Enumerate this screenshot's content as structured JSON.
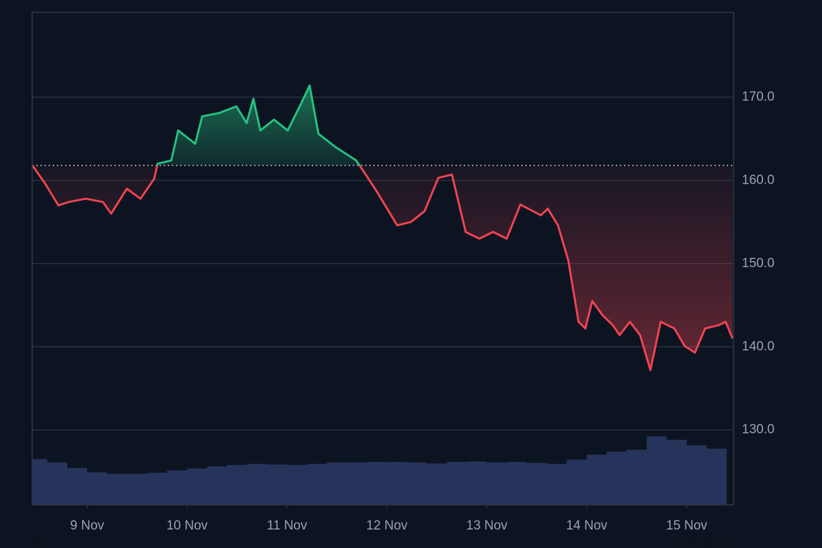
{
  "chart_data": {
    "type": "baseline-area",
    "price": {
      "x": [
        8.452,
        8.575,
        8.712,
        8.815,
        8.986,
        9.158,
        9.24,
        9.397,
        9.534,
        9.671,
        9.705,
        9.842,
        9.911,
        10.082,
        10.151,
        10.322,
        10.493,
        10.596,
        10.664,
        10.733,
        10.87,
        11.007,
        11.144,
        11.226,
        11.315,
        11.486,
        11.692,
        11.76,
        11.897,
        12.103,
        12.24,
        12.377,
        12.514,
        12.651,
        12.788,
        12.925,
        13.062,
        13.199,
        13.336,
        13.541,
        13.61,
        13.712,
        13.815,
        13.918,
        13.986,
        14.055,
        14.158,
        14.26,
        14.329,
        14.432,
        14.534,
        14.637,
        14.74,
        14.877,
        14.979,
        15.082,
        15.185,
        15.322,
        15.39,
        15.459
      ],
      "values": [
        161.8,
        159.7,
        157,
        157.4,
        157.8,
        157.4,
        156,
        159,
        157.8,
        160.2,
        162,
        162.4,
        166,
        164.4,
        167.7,
        168.1,
        168.9,
        166.9,
        169.8,
        166,
        167.3,
        166,
        169.3,
        171.4,
        165.6,
        164,
        162.4,
        161.2,
        158.7,
        154.6,
        155,
        156.3,
        160.3,
        160.7,
        153.8,
        153,
        153.8,
        153,
        157.1,
        155.8,
        156.6,
        154.6,
        150.4,
        143,
        142.2,
        145.5,
        143.8,
        142.6,
        141.4,
        143,
        141.4,
        137.2,
        143,
        142.2,
        140.1,
        139.3,
        142.2,
        142.6,
        143,
        141
      ],
      "up_color": "#26c281",
      "down_color": "#ef4452"
    },
    "baseline": 161.8,
    "volume": {
      "x": [
        8.5,
        8.7,
        8.9,
        9.1,
        9.3,
        9.5,
        9.7,
        9.9,
        10.1,
        10.3,
        10.5,
        10.7,
        10.9,
        11.1,
        11.3,
        11.5,
        11.7,
        11.9,
        12.1,
        12.3,
        12.5,
        12.7,
        12.9,
        13.1,
        13.3,
        13.5,
        13.7,
        13.9,
        14.1,
        14.3,
        14.5,
        14.7,
        14.9,
        15.1,
        15.3
      ],
      "values": [
        9.3,
        8.6,
        7.5,
        6.6,
        6.3,
        6.3,
        6.5,
        7.0,
        7.4,
        7.8,
        8.1,
        8.3,
        8.2,
        8.1,
        8.3,
        8.6,
        8.6,
        8.7,
        8.7,
        8.6,
        8.4,
        8.7,
        8.8,
        8.6,
        8.7,
        8.5,
        8.3,
        9.2,
        10.2,
        10.8,
        11.2,
        13.9,
        13.2,
        12.1,
        11.4
      ],
      "color": "#2c3a66"
    },
    "xlim": [
      8.45,
      15.47
    ],
    "xticks": [
      {
        "value": 9,
        "label": "9 Nov"
      },
      {
        "value": 10,
        "label": "10 Nov"
      },
      {
        "value": 11,
        "label": "11 Nov"
      },
      {
        "value": 12,
        "label": "12 Nov"
      },
      {
        "value": 13,
        "label": "13 Nov"
      },
      {
        "value": 14,
        "label": "14 Nov"
      },
      {
        "value": 15,
        "label": "15 Nov"
      }
    ],
    "ylim": [
      121,
      180.2
    ],
    "yticks": [
      {
        "value": 130,
        "label": "130.0"
      },
      {
        "value": 140,
        "label": "140.0"
      },
      {
        "value": 150,
        "label": "150.0"
      },
      {
        "value": 160,
        "label": "160.0"
      },
      {
        "value": 170,
        "label": "170.0"
      }
    ],
    "y2lim": [
      0,
      100
    ],
    "grid": true
  },
  "footer": {
    "left": "57",
    "right": "Analyze"
  }
}
